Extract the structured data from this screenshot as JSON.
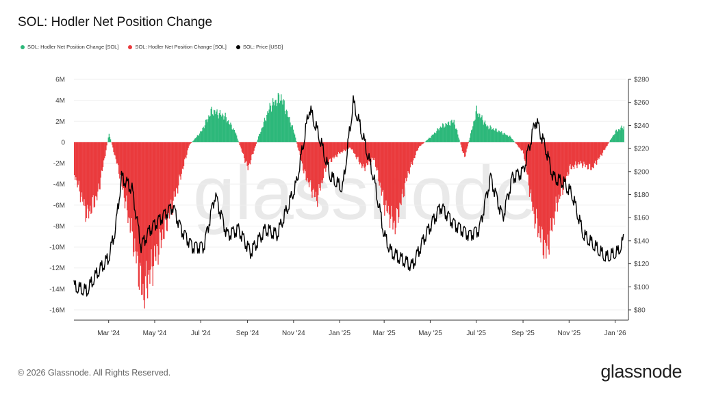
{
  "title": "SOL: Hodler Net Position Change",
  "legend": [
    {
      "label": "SOL: Hodler Net Position Change [SOL]",
      "color": "#2db87a"
    },
    {
      "label": "SOL: Hodler Net Position Change [SOL]",
      "color": "#ea3a3d"
    },
    {
      "label": "SOL: Price [USD]",
      "color": "#000000"
    }
  ],
  "watermark": "glassnode",
  "footer": {
    "copyright": "© 2026 Glassnode. All Rights Reserved.",
    "brand": "glassnode"
  },
  "chart_data": {
    "type": "bar+line",
    "title": "SOL: Hodler Net Position Change",
    "y_left": {
      "min": -16,
      "max": 6,
      "ticks": [
        "6M",
        "4M",
        "2M",
        "0",
        "-2M",
        "-4M",
        "-6M",
        "-8M",
        "-10M",
        "-12M",
        "-14M",
        "-16M"
      ]
    },
    "y_right": {
      "min": 80,
      "max": 280,
      "ticks": [
        "$280",
        "$260",
        "$240",
        "$220",
        "$200",
        "$180",
        "$160",
        "$140",
        "$120",
        "$100",
        "$80"
      ]
    },
    "x_start": "2024-01-15",
    "x_end": "2026-01-15",
    "x_ticks": [
      {
        "label": "Mar '24",
        "date": "2024-03-01"
      },
      {
        "label": "May '24",
        "date": "2024-05-01"
      },
      {
        "label": "Jul '24",
        "date": "2024-07-01"
      },
      {
        "label": "Sep '24",
        "date": "2024-09-01"
      },
      {
        "label": "Nov '24",
        "date": "2024-11-01"
      },
      {
        "label": "Jan '25",
        "date": "2025-01-01"
      },
      {
        "label": "Mar '25",
        "date": "2025-03-01"
      },
      {
        "label": "May '25",
        "date": "2025-05-01"
      },
      {
        "label": "Jul '25",
        "date": "2025-07-01"
      },
      {
        "label": "Sep '25",
        "date": "2025-09-01"
      },
      {
        "label": "Nov '25",
        "date": "2025-11-01"
      },
      {
        "label": "Jan '26",
        "date": "2026-01-01"
      }
    ],
    "net_position_change_millions_sol": {
      "dates": [
        "2024-01-15",
        "2024-02-01",
        "2024-02-15",
        "2024-03-01",
        "2024-03-15",
        "2024-04-01",
        "2024-04-15",
        "2024-05-01",
        "2024-05-15",
        "2024-06-01",
        "2024-06-15",
        "2024-07-01",
        "2024-07-15",
        "2024-08-01",
        "2024-08-15",
        "2024-09-01",
        "2024-09-15",
        "2024-10-01",
        "2024-10-15",
        "2024-11-01",
        "2024-11-15",
        "2024-12-01",
        "2024-12-15",
        "2025-01-01",
        "2025-01-15",
        "2025-02-01",
        "2025-02-15",
        "2025-03-01",
        "2025-03-15",
        "2025-04-01",
        "2025-04-15",
        "2025-05-01",
        "2025-05-15",
        "2025-06-01",
        "2025-06-15",
        "2025-07-01",
        "2025-07-15",
        "2025-08-01",
        "2025-08-15",
        "2025-09-01",
        "2025-09-15",
        "2025-10-01",
        "2025-10-15",
        "2025-11-01",
        "2025-11-15",
        "2025-12-01",
        "2025-12-15",
        "2026-01-01",
        "2026-01-12"
      ],
      "values": [
        -3.0,
        -7.0,
        -5.0,
        0.8,
        -3.0,
        -9.0,
        -14.5,
        -11.0,
        -8.0,
        -4.0,
        -0.3,
        1.0,
        3.0,
        2.5,
        1.0,
        -2.5,
        0.5,
        3.5,
        4.3,
        1.0,
        -3.0,
        -5.5,
        -2.0,
        -1.0,
        -0.5,
        -2.5,
        -1.5,
        -6.0,
        -8.0,
        -3.0,
        -0.5,
        0.5,
        1.5,
        2.0,
        -1.5,
        3.0,
        1.5,
        1.0,
        0.5,
        -1.0,
        -7.0,
        -10.5,
        -6.0,
        -2.5,
        -2.0,
        -2.5,
        -1.0,
        1.0,
        1.5
      ]
    },
    "price_usd": {
      "dates": [
        "2024-01-15",
        "2024-02-01",
        "2024-02-15",
        "2024-03-01",
        "2024-03-10",
        "2024-03-18",
        "2024-04-01",
        "2024-04-13",
        "2024-04-25",
        "2024-05-10",
        "2024-05-25",
        "2024-06-05",
        "2024-06-20",
        "2024-07-05",
        "2024-07-20",
        "2024-08-05",
        "2024-08-20",
        "2024-09-05",
        "2024-09-25",
        "2024-10-10",
        "2024-10-25",
        "2024-11-05",
        "2024-11-22",
        "2024-12-05",
        "2024-12-20",
        "2025-01-05",
        "2025-01-19",
        "2025-02-01",
        "2025-02-15",
        "2025-03-01",
        "2025-03-10",
        "2025-04-07",
        "2025-04-25",
        "2025-05-15",
        "2025-06-01",
        "2025-06-22",
        "2025-07-05",
        "2025-07-20",
        "2025-08-05",
        "2025-08-18",
        "2025-09-01",
        "2025-09-18",
        "2025-10-01",
        "2025-10-11",
        "2025-10-25",
        "2025-11-05",
        "2025-11-20",
        "2025-12-05",
        "2025-12-20",
        "2026-01-05",
        "2026-01-12"
      ],
      "values": [
        100,
        96,
        112,
        125,
        150,
        195,
        185,
        135,
        150,
        160,
        170,
        150,
        135,
        135,
        180,
        145,
        150,
        130,
        150,
        145,
        170,
        190,
        255,
        230,
        195,
        185,
        260,
        230,
        195,
        145,
        130,
        118,
        145,
        170,
        155,
        145,
        150,
        195,
        160,
        195,
        200,
        245,
        220,
        195,
        190,
        180,
        145,
        135,
        125,
        130,
        140
      ]
    }
  }
}
